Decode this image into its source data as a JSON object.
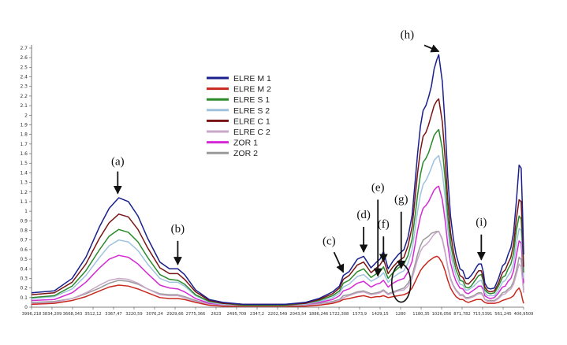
{
  "chart_data": {
    "type": "line",
    "title": "",
    "xlabel": "",
    "ylabel": "",
    "xlim": [
      3996.218,
      406.9509
    ],
    "ylim": [
      0,
      2.7
    ],
    "x_reversed": true,
    "grid": false,
    "legend_position": "top-center",
    "y_ticks": [
      "0",
      "0.1",
      "0.2",
      "0.3",
      "0.4",
      "0.5",
      "0.6",
      "0.7",
      "0.8",
      "0.9",
      "1",
      "1.1",
      "1.2",
      "1.3",
      "1.4",
      "1.5",
      "1.6",
      "1.7",
      "1.8",
      "1.9",
      "2",
      "2.1",
      "2.2",
      "2.3",
      "2.4",
      "2.5",
      "2.6",
      "2.7"
    ],
    "x_ticks": [
      "3996,218",
      "3834,209",
      "3668,343",
      "3512,12",
      "3367,47",
      "3220,59",
      "3076,24",
      "2929,66",
      "2775,366",
      "2623",
      "2495,709",
      "2347,2",
      "2202,549",
      "2043,54",
      "1886,246",
      "1722,308",
      "1573,9",
      "1429,15",
      "1280",
      "1180,35",
      "1026,056",
      "871,782",
      "715,5391",
      "561,245",
      "406,9509"
    ],
    "x": [
      3996.218,
      3830,
      3700,
      3600,
      3500,
      3430,
      3360,
      3290,
      3220,
      3150,
      3060,
      2990,
      2929.66,
      2880,
      2800,
      2700,
      2600,
      2450,
      2300,
      2150,
      2000,
      1900,
      1800,
      1750,
      1722.308,
      1680,
      1620,
      1573.9,
      1520,
      1480,
      1455,
      1429.15,
      1395,
      1360,
      1320,
      1280,
      1250,
      1220,
      1200,
      1180.35,
      1160,
      1140,
      1120,
      1100,
      1080,
      1060,
      1040,
      1026.056,
      1000,
      980,
      960,
      940,
      920,
      900,
      880,
      871.782,
      850,
      830,
      810,
      790,
      770,
      750,
      735,
      715.5391,
      700,
      690,
      670,
      650,
      620,
      590,
      561.245,
      540,
      520,
      500,
      480,
      460,
      440,
      425,
      415,
      406.9509
    ],
    "series": [
      {
        "name": "ELRE M 1",
        "color": "#1a1f8c",
        "values": [
          0.15,
          0.17,
          0.3,
          0.52,
          0.84,
          1.03,
          1.14,
          1.1,
          0.95,
          0.72,
          0.47,
          0.4,
          0.4,
          0.34,
          0.18,
          0.08,
          0.05,
          0.03,
          0.03,
          0.03,
          0.05,
          0.09,
          0.16,
          0.22,
          0.33,
          0.37,
          0.5,
          0.53,
          0.41,
          0.47,
          0.5,
          0.58,
          0.4,
          0.48,
          0.55,
          0.6,
          0.73,
          0.96,
          1.28,
          1.6,
          1.88,
          2.05,
          2.1,
          2.19,
          2.3,
          2.48,
          2.58,
          2.63,
          2.35,
          1.9,
          1.35,
          0.95,
          0.72,
          0.55,
          0.45,
          0.4,
          0.38,
          0.3,
          0.3,
          0.33,
          0.37,
          0.42,
          0.45,
          0.45,
          0.36,
          0.25,
          0.2,
          0.19,
          0.2,
          0.3,
          0.43,
          0.46,
          0.55,
          0.62,
          0.78,
          1.1,
          1.48,
          1.45,
          1.0,
          0.55
        ]
      },
      {
        "name": "ELRE M 2",
        "color": "#c8281e",
        "values": [
          0.03,
          0.04,
          0.07,
          0.11,
          0.17,
          0.21,
          0.23,
          0.22,
          0.19,
          0.15,
          0.1,
          0.09,
          0.09,
          0.08,
          0.05,
          0.02,
          0.01,
          0.01,
          0.01,
          0.01,
          0.01,
          0.02,
          0.04,
          0.06,
          0.08,
          0.09,
          0.11,
          0.12,
          0.1,
          0.11,
          0.11,
          0.12,
          0.1,
          0.11,
          0.12,
          0.13,
          0.15,
          0.2,
          0.26,
          0.32,
          0.38,
          0.42,
          0.45,
          0.48,
          0.5,
          0.52,
          0.53,
          0.52,
          0.46,
          0.38,
          0.28,
          0.2,
          0.15,
          0.11,
          0.09,
          0.08,
          0.08,
          0.06,
          0.05,
          0.06,
          0.07,
          0.08,
          0.08,
          0.08,
          0.06,
          0.05,
          0.04,
          0.04,
          0.04,
          0.05,
          0.07,
          0.08,
          0.09,
          0.1,
          0.12,
          0.17,
          0.2,
          0.15,
          0.08,
          0.04
        ]
      },
      {
        "name": "ELRE S 1",
        "color": "#2a8a2a",
        "values": [
          0.1,
          0.12,
          0.22,
          0.38,
          0.6,
          0.74,
          0.81,
          0.78,
          0.68,
          0.52,
          0.34,
          0.29,
          0.28,
          0.24,
          0.13,
          0.06,
          0.04,
          0.02,
          0.02,
          0.02,
          0.04,
          0.07,
          0.12,
          0.17,
          0.25,
          0.28,
          0.37,
          0.4,
          0.31,
          0.35,
          0.37,
          0.42,
          0.3,
          0.36,
          0.41,
          0.45,
          0.54,
          0.71,
          0.94,
          1.17,
          1.38,
          1.51,
          1.55,
          1.61,
          1.7,
          1.79,
          1.83,
          1.85,
          1.65,
          1.34,
          0.95,
          0.67,
          0.51,
          0.39,
          0.32,
          0.28,
          0.27,
          0.21,
          0.2,
          0.22,
          0.26,
          0.3,
          0.33,
          0.34,
          0.27,
          0.18,
          0.15,
          0.14,
          0.15,
          0.22,
          0.31,
          0.33,
          0.4,
          0.45,
          0.56,
          0.8,
          0.95,
          0.92,
          0.65,
          0.36
        ]
      },
      {
        "name": "ELRE S 2",
        "color": "#9fc3df",
        "values": [
          0.09,
          0.11,
          0.19,
          0.33,
          0.52,
          0.64,
          0.7,
          0.68,
          0.59,
          0.45,
          0.3,
          0.26,
          0.26,
          0.22,
          0.12,
          0.05,
          0.03,
          0.02,
          0.02,
          0.02,
          0.03,
          0.06,
          0.1,
          0.15,
          0.21,
          0.24,
          0.32,
          0.34,
          0.27,
          0.3,
          0.32,
          0.36,
          0.26,
          0.31,
          0.35,
          0.38,
          0.46,
          0.6,
          0.8,
          1.0,
          1.17,
          1.28,
          1.32,
          1.38,
          1.45,
          1.53,
          1.56,
          1.58,
          1.41,
          1.14,
          0.81,
          0.57,
          0.43,
          0.33,
          0.27,
          0.24,
          0.23,
          0.18,
          0.18,
          0.2,
          0.22,
          0.25,
          0.27,
          0.28,
          0.22,
          0.15,
          0.12,
          0.12,
          0.12,
          0.18,
          0.26,
          0.28,
          0.33,
          0.37,
          0.46,
          0.66,
          0.82,
          0.8,
          0.55,
          0.3
        ]
      },
      {
        "name": "ELRE C 1",
        "color": "#7a1414",
        "values": [
          0.13,
          0.15,
          0.26,
          0.45,
          0.72,
          0.88,
          0.97,
          0.94,
          0.81,
          0.62,
          0.41,
          0.35,
          0.35,
          0.29,
          0.16,
          0.07,
          0.04,
          0.03,
          0.03,
          0.03,
          0.04,
          0.08,
          0.14,
          0.2,
          0.29,
          0.33,
          0.44,
          0.47,
          0.36,
          0.41,
          0.44,
          0.5,
          0.35,
          0.42,
          0.48,
          0.52,
          0.64,
          0.84,
          1.12,
          1.4,
          1.63,
          1.78,
          1.82,
          1.9,
          2.0,
          2.1,
          2.15,
          2.17,
          1.93,
          1.56,
          1.11,
          0.78,
          0.59,
          0.45,
          0.37,
          0.33,
          0.31,
          0.25,
          0.24,
          0.27,
          0.3,
          0.35,
          0.38,
          0.38,
          0.3,
          0.21,
          0.17,
          0.16,
          0.17,
          0.25,
          0.36,
          0.39,
          0.46,
          0.52,
          0.66,
          0.92,
          1.12,
          1.1,
          0.75,
          0.42
        ]
      },
      {
        "name": "ELRE C 2",
        "color": "#c9a7c9",
        "values": [
          0.04,
          0.05,
          0.09,
          0.15,
          0.23,
          0.28,
          0.3,
          0.29,
          0.25,
          0.19,
          0.13,
          0.12,
          0.12,
          0.1,
          0.06,
          0.03,
          0.02,
          0.01,
          0.01,
          0.01,
          0.02,
          0.03,
          0.05,
          0.07,
          0.1,
          0.12,
          0.15,
          0.16,
          0.13,
          0.14,
          0.15,
          0.17,
          0.13,
          0.15,
          0.17,
          0.18,
          0.22,
          0.3,
          0.4,
          0.5,
          0.58,
          0.63,
          0.65,
          0.68,
          0.72,
          0.76,
          0.78,
          0.79,
          0.7,
          0.57,
          0.41,
          0.29,
          0.22,
          0.17,
          0.14,
          0.12,
          0.12,
          0.09,
          0.09,
          0.1,
          0.11,
          0.13,
          0.14,
          0.14,
          0.11,
          0.08,
          0.06,
          0.06,
          0.06,
          0.09,
          0.13,
          0.14,
          0.17,
          0.19,
          0.24,
          0.34,
          0.45,
          0.42,
          0.28,
          0.15
        ]
      },
      {
        "name": "ZOR 1",
        "color": "#d42ad4",
        "values": [
          0.07,
          0.08,
          0.15,
          0.26,
          0.41,
          0.5,
          0.54,
          0.52,
          0.45,
          0.35,
          0.23,
          0.2,
          0.19,
          0.16,
          0.09,
          0.04,
          0.03,
          0.02,
          0.02,
          0.02,
          0.03,
          0.05,
          0.08,
          0.12,
          0.17,
          0.19,
          0.25,
          0.27,
          0.21,
          0.24,
          0.25,
          0.28,
          0.21,
          0.25,
          0.28,
          0.3,
          0.37,
          0.48,
          0.64,
          0.8,
          0.94,
          1.03,
          1.06,
          1.1,
          1.16,
          1.22,
          1.25,
          1.26,
          1.12,
          0.91,
          0.65,
          0.46,
          0.35,
          0.27,
          0.22,
          0.2,
          0.19,
          0.15,
          0.14,
          0.16,
          0.18,
          0.2,
          0.22,
          0.22,
          0.18,
          0.12,
          0.1,
          0.09,
          0.1,
          0.15,
          0.21,
          0.22,
          0.27,
          0.3,
          0.38,
          0.54,
          0.69,
          0.67,
          0.46,
          0.25
        ]
      },
      {
        "name": "ZOR 2",
        "color": "#9a9a9a",
        "values": [
          0.05,
          0.06,
          0.09,
          0.14,
          0.2,
          0.25,
          0.28,
          0.27,
          0.24,
          0.19,
          0.14,
          0.13,
          0.13,
          0.11,
          0.07,
          0.03,
          0.02,
          0.01,
          0.01,
          0.01,
          0.02,
          0.04,
          0.06,
          0.08,
          0.12,
          0.13,
          0.16,
          0.17,
          0.14,
          0.15,
          0.16,
          0.18,
          0.14,
          0.16,
          0.18,
          0.2,
          0.25,
          0.33,
          0.44,
          0.55,
          0.64,
          0.7,
          0.72,
          0.74,
          0.77,
          0.78,
          0.79,
          0.79,
          0.71,
          0.58,
          0.42,
          0.3,
          0.23,
          0.18,
          0.15,
          0.13,
          0.13,
          0.1,
          0.1,
          0.11,
          0.12,
          0.14,
          0.15,
          0.15,
          0.12,
          0.08,
          0.07,
          0.07,
          0.07,
          0.1,
          0.15,
          0.16,
          0.19,
          0.21,
          0.27,
          0.38,
          0.52,
          0.5,
          0.34,
          0.18
        ]
      }
    ],
    "annotations": [
      {
        "label": "(a)",
        "x": 3367.47,
        "y": 1.16
      },
      {
        "label": "(b)",
        "x": 2929.66,
        "y": 0.42
      },
      {
        "label": "(c)",
        "x": 1722.308,
        "y": 0.34
      },
      {
        "label": "(d)",
        "x": 1573.9,
        "y": 0.55
      },
      {
        "label": "(e)",
        "x": 1470,
        "y": 0.3
      },
      {
        "label": "(f)",
        "x": 1429.15,
        "y": 0.45
      },
      {
        "label": "(g)",
        "x": 1300,
        "y": 0.38
      },
      {
        "label": "(h)",
        "x": 1026.056,
        "y": 2.64
      },
      {
        "label": "(i)",
        "x": 715.5391,
        "y": 0.47
      }
    ]
  }
}
